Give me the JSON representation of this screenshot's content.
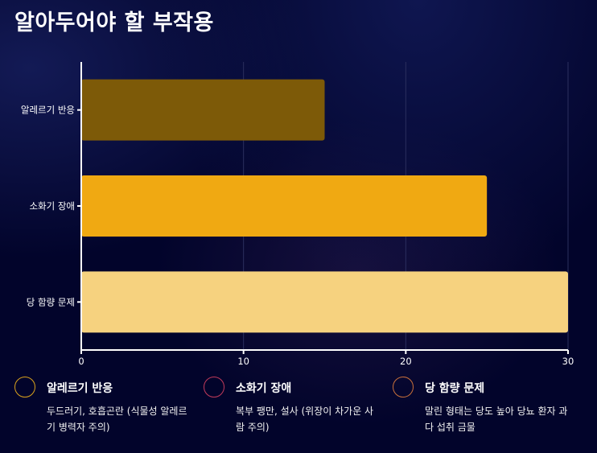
{
  "title": "알아두어야 할 부작용",
  "chart_data": {
    "type": "bar",
    "orientation": "horizontal",
    "categories": [
      "알레르기 반응",
      "소화기 장애",
      "당 함량 문제"
    ],
    "values": [
      15,
      25,
      30
    ],
    "colors": [
      "#7d5a08",
      "#f0a912",
      "#f6d27f"
    ],
    "xlim": [
      0,
      30
    ],
    "xticks": [
      0,
      10,
      20,
      30
    ],
    "grid": "vertical"
  },
  "legend": [
    {
      "name": "알레르기 반응",
      "desc": "두드러기, 호흡곤란 (식물성 알레르기 병력자 주의)",
      "ring_color": "#d9a21c"
    },
    {
      "name": "소화기 장애",
      "desc": "복부 팽만, 설사 (위장이 차가운 사람 주의)",
      "ring_color": "#c03a5a"
    },
    {
      "name": "당 함량 문제",
      "desc": "말린 형태는 당도 높아 당뇨 환자 과다 섭취 금물",
      "ring_color": "#c8703a"
    }
  ]
}
